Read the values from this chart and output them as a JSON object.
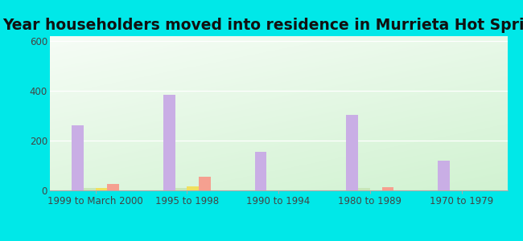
{
  "title": "Year householders moved into residence in Murrieta Hot Springs",
  "categories": [
    "1999 to March 2000",
    "1995 to 1998",
    "1990 to 1994",
    "1980 to 1989",
    "1970 to 1979"
  ],
  "series": {
    "White Non-Hispanic": [
      262,
      385,
      155,
      305,
      120
    ],
    "Black": [
      10,
      10,
      0,
      10,
      0
    ],
    "Asian": [
      10,
      15,
      0,
      0,
      0
    ],
    "Hispanic or Latino": [
      25,
      55,
      0,
      12,
      0
    ]
  },
  "colors": {
    "White Non-Hispanic": "#c9aee5",
    "Black": "#c8e6b8",
    "Asian": "#f0e060",
    "Hispanic or Latino": "#f5a090"
  },
  "ylim": [
    0,
    620
  ],
  "yticks": [
    0,
    200,
    400,
    600
  ],
  "outer_bg": "#00e8e8",
  "bar_width": 0.13,
  "title_fontsize": 13.5,
  "tick_fontsize": 8.5,
  "legend_fontsize": 9
}
